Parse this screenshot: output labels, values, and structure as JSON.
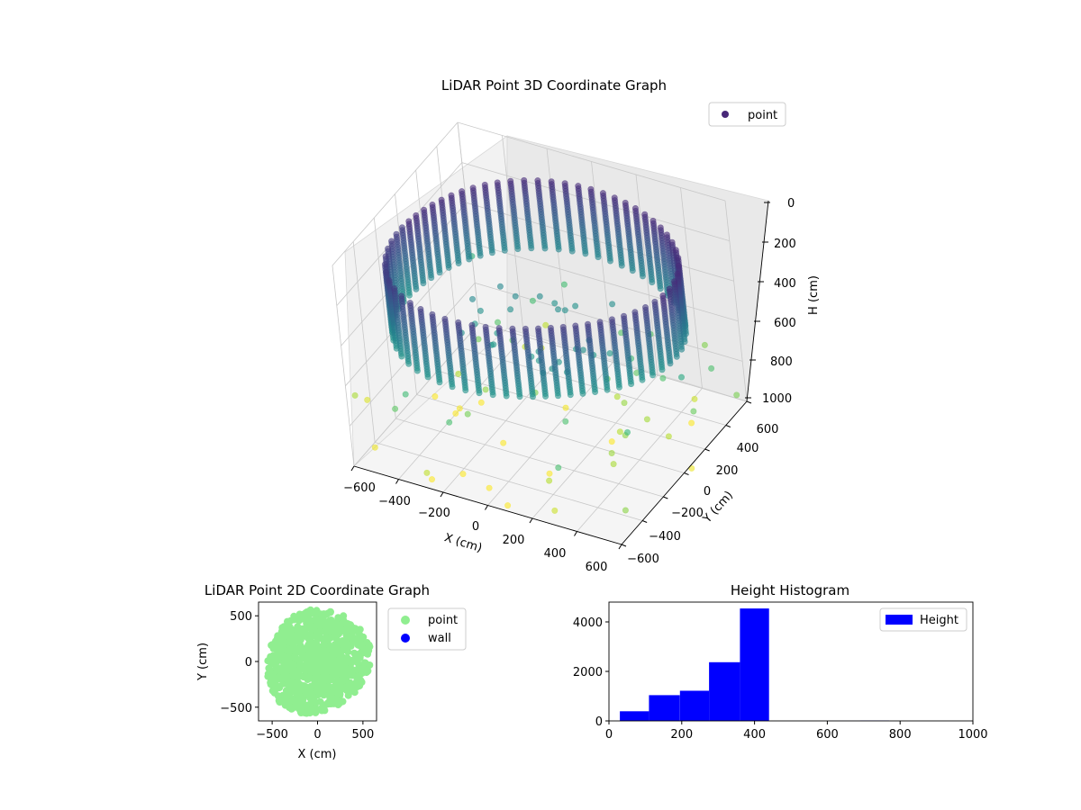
{
  "chart_data": [
    {
      "type": "scatter3d",
      "title": "LiDAR Point 3D Coordinate Graph",
      "xlabel": "X (cm)",
      "ylabel": "Y (cm)",
      "zlabel": "H (cm)",
      "xlim": [
        -600,
        600
      ],
      "ylim": [
        -600,
        600
      ],
      "zlim": [
        0,
        1000
      ],
      "z_inverted": true,
      "x_ticks": [
        "−600",
        "−400",
        "−200",
        "0",
        "200",
        "400",
        "600"
      ],
      "y_ticks": [
        "−600",
        "−400",
        "−200",
        "0",
        "200",
        "400",
        "600"
      ],
      "z_ticks": [
        "0",
        "200",
        "400",
        "600",
        "800",
        "1000"
      ],
      "legend": {
        "label": "point",
        "position": "top-right",
        "color": "#482878"
      },
      "colormap": "viridis",
      "grid": true
    },
    {
      "type": "scatter",
      "title": "LiDAR Point 2D Coordinate Graph",
      "xlabel": "X (cm)",
      "ylabel": "Y (cm)",
      "xlim": [
        -650,
        650
      ],
      "ylim": [
        -650,
        650
      ],
      "x_ticks": [
        "−500",
        "0",
        "500"
      ],
      "y_ticks": [
        "−500",
        "0",
        "500"
      ],
      "series": [
        {
          "name": "point",
          "color": "#90ee90"
        },
        {
          "name": "wall",
          "color": "#0000ff"
        }
      ],
      "legend_position": "outside-right"
    },
    {
      "type": "bar",
      "title": "Height Histogram",
      "xlim": [
        0,
        1000
      ],
      "ylim": [
        0,
        4800
      ],
      "x_ticks": [
        "0",
        "200",
        "400",
        "600",
        "800",
        "1000"
      ],
      "y_ticks": [
        "0",
        "2000",
        "4000"
      ],
      "series": [
        {
          "name": "Height",
          "color": "#0000ff",
          "bins": [
            [
              30,
              110,
              390
            ],
            [
              110,
              195,
              1040
            ],
            [
              195,
              275,
              1220
            ],
            [
              275,
              360,
              2370
            ],
            [
              360,
              440,
              4540
            ],
            [
              440,
              520,
              0
            ],
            [
              520,
              605,
              0
            ],
            [
              605,
              690,
              5
            ],
            [
              690,
              770,
              20
            ],
            [
              770,
              855,
              0
            ],
            [
              855,
              935,
              0
            ],
            [
              935,
              1000,
              0
            ]
          ]
        }
      ],
      "legend_position": "top-right"
    }
  ]
}
